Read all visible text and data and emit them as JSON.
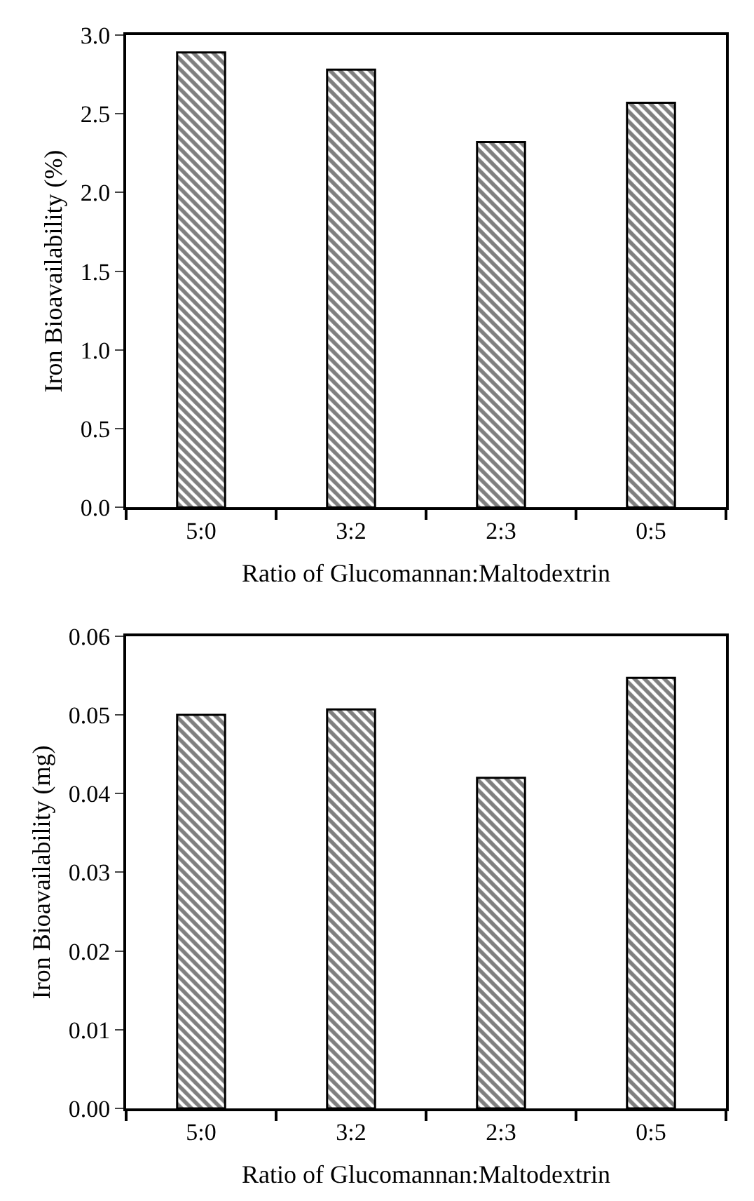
{
  "chart_data": [
    {
      "type": "bar",
      "categories": [
        "5:0",
        "3:2",
        "2:3",
        "0:5"
      ],
      "values": [
        2.89,
        2.78,
        2.32,
        2.57
      ],
      "color": "#000000",
      "ylim": [
        0,
        3.0
      ],
      "yticks": [
        {
          "value": 0,
          "label": "0.0"
        },
        {
          "value": 0.5,
          "label": "0.5"
        },
        {
          "value": 1,
          "label": "1.0"
        },
        {
          "value": 1.5,
          "label": "1.5"
        },
        {
          "value": 2,
          "label": "2.0"
        },
        {
          "value": 2.5,
          "label": "2.5"
        },
        {
          "value": 3,
          "label": "3.0"
        }
      ],
      "xlabel": "Ratio of Glucomannan:Maltodextrin",
      "ylabel": "Iron Bioavailability (%)",
      "legend": false
    },
    {
      "type": "bar",
      "categories": [
        "5:0",
        "3:2",
        "2:3",
        "0:5"
      ],
      "values": [
        0.05,
        0.0507,
        0.042,
        0.0547
      ],
      "color": "#000000",
      "ylim": [
        0,
        0.06
      ],
      "yticks": [
        {
          "value": 0,
          "label": "0.00"
        },
        {
          "value": 0.01,
          "label": "0.01"
        },
        {
          "value": 0.02,
          "label": "0.02"
        },
        {
          "value": 0.03,
          "label": "0.03"
        },
        {
          "value": 0.04,
          "label": "0.04"
        },
        {
          "value": 0.05,
          "label": "0.05"
        },
        {
          "value": 0.06,
          "label": "0.06"
        }
      ],
      "xlabel": "Ratio of Glucomannan:Maltodextrin",
      "ylabel": "Iron Bioavailability (mg)",
      "legend": false
    }
  ]
}
